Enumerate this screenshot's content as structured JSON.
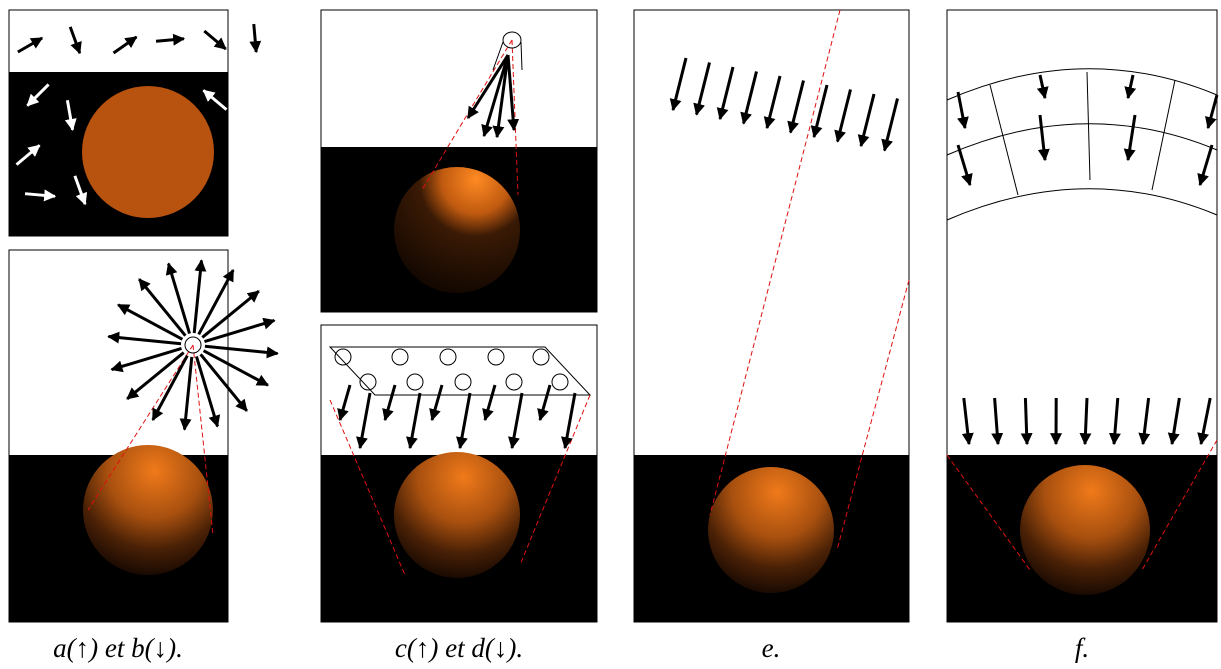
{
  "captions": [
    "a(↑) et b(↓).",
    "c(↑) et d(↓).",
    "e.",
    "f."
  ]
}
